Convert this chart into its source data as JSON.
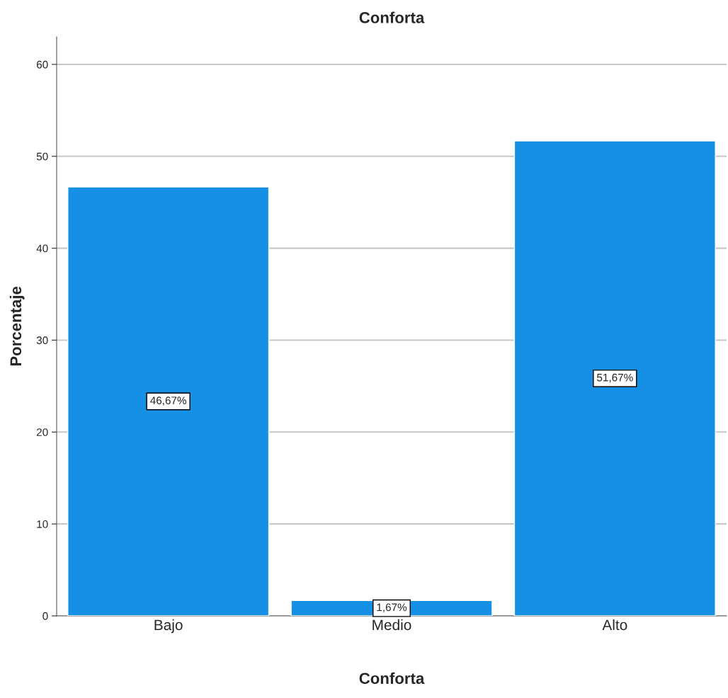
{
  "chart_data": {
    "type": "bar",
    "title": "Conforta",
    "xlabel": "Conforta",
    "ylabel": "Porcentaje",
    "categories": [
      "Bajo",
      "Medio",
      "Alto"
    ],
    "values": [
      46.67,
      1.67,
      51.67
    ],
    "value_labels": [
      "46,67%",
      "1,67%",
      "51,67%"
    ],
    "color": "#1690e5",
    "ylim": [
      0,
      63
    ],
    "yticks": [
      0,
      10,
      20,
      30,
      40,
      50,
      60
    ],
    "grid": "y"
  }
}
